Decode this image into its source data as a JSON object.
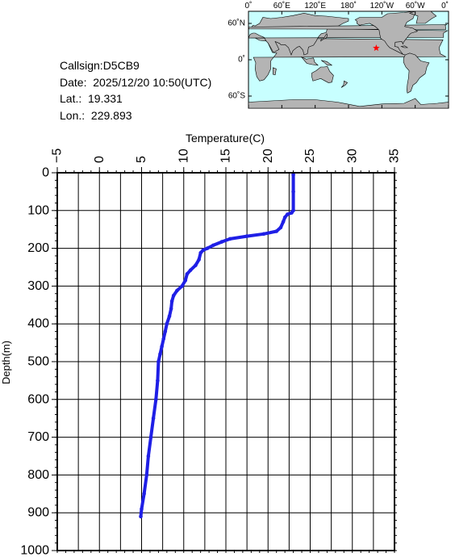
{
  "info": {
    "callsign": "Callsign:D5CB9",
    "date": "Date:  2025/12/20 10:50(UTC)",
    "lat": "Lat.:  19.331",
    "lon": "Lon.:  229.893"
  },
  "map": {
    "lon_ticks": [
      "0˚",
      "60˚E",
      "120˚E",
      "180˚",
      "120˚W",
      "60˚W",
      "0˚"
    ],
    "lat_ticks": [
      "60˚N",
      "0˚",
      "60˚S"
    ],
    "ocean_color": "#c8ffff",
    "land_color": "#b4b4b4",
    "marker_icon": "star-icon",
    "marker_color": "#ff0000",
    "marker_lat": 19.331,
    "marker_lon": 229.893
  },
  "chart_data": {
    "type": "line",
    "xlabel": "Temperature(C)",
    "ylabel": "Depth(m)",
    "xlim": [
      -5,
      35
    ],
    "ylim": [
      1000,
      0
    ],
    "x_ticks": [
      -5,
      0,
      5,
      10,
      15,
      20,
      25,
      30,
      35
    ],
    "y_ticks": [
      0,
      100,
      200,
      300,
      400,
      500,
      600,
      700,
      800,
      900,
      1000
    ],
    "grid": true,
    "line_color": "#1f1fe6",
    "series": [
      {
        "values": [
          {
            "t": 23.0,
            "d": 5
          },
          {
            "t": 23.0,
            "d": 50
          },
          {
            "t": 23.0,
            "d": 100
          },
          {
            "t": 22.8,
            "d": 106
          },
          {
            "t": 22.3,
            "d": 110
          },
          {
            "t": 22.0,
            "d": 118
          },
          {
            "t": 21.8,
            "d": 130
          },
          {
            "t": 21.5,
            "d": 145
          },
          {
            "t": 21.0,
            "d": 155
          },
          {
            "t": 19.5,
            "d": 162
          },
          {
            "t": 17.5,
            "d": 168
          },
          {
            "t": 15.5,
            "d": 175
          },
          {
            "t": 14.5,
            "d": 183
          },
          {
            "t": 13.5,
            "d": 192
          },
          {
            "t": 12.8,
            "d": 200
          },
          {
            "t": 12.3,
            "d": 205
          },
          {
            "t": 12.0,
            "d": 212
          },
          {
            "t": 11.8,
            "d": 230
          },
          {
            "t": 11.4,
            "d": 245
          },
          {
            "t": 10.8,
            "d": 258
          },
          {
            "t": 10.4,
            "d": 268
          },
          {
            "t": 10.2,
            "d": 285
          },
          {
            "t": 9.8,
            "d": 300
          },
          {
            "t": 9.2,
            "d": 312
          },
          {
            "t": 8.8,
            "d": 325
          },
          {
            "t": 8.6,
            "d": 340
          },
          {
            "t": 8.5,
            "d": 360
          },
          {
            "t": 8.3,
            "d": 380
          },
          {
            "t": 8.0,
            "d": 400
          },
          {
            "t": 7.8,
            "d": 420
          },
          {
            "t": 7.6,
            "d": 440
          },
          {
            "t": 7.4,
            "d": 460
          },
          {
            "t": 7.2,
            "d": 480
          },
          {
            "t": 7.0,
            "d": 500
          },
          {
            "t": 6.9,
            "d": 550
          },
          {
            "t": 6.7,
            "d": 600
          },
          {
            "t": 6.4,
            "d": 650
          },
          {
            "t": 6.1,
            "d": 700
          },
          {
            "t": 5.8,
            "d": 750
          },
          {
            "t": 5.6,
            "d": 800
          },
          {
            "t": 5.3,
            "d": 850
          },
          {
            "t": 5.0,
            "d": 890
          },
          {
            "t": 4.9,
            "d": 910
          }
        ]
      }
    ]
  }
}
